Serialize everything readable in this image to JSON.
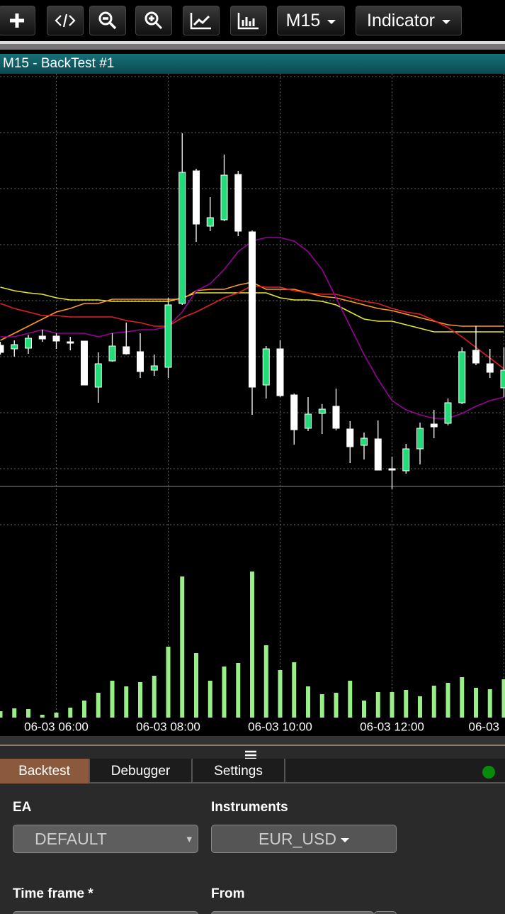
{
  "toolbar": {
    "timeframe": "M15",
    "indicator": "Indicator"
  },
  "panel_title": "M15 - BackTest #1",
  "chart_data": {
    "type": "candlestick",
    "categories": [
      null,
      null,
      null,
      null,
      "06-03 06:00",
      null,
      null,
      null,
      null,
      null,
      null,
      null,
      "06-03 08:00",
      null,
      null,
      null,
      null,
      null,
      null,
      null,
      "06-03 10:00",
      null,
      null,
      null,
      null,
      null,
      null,
      null,
      "06-03 12:00",
      null,
      null,
      null,
      null,
      null,
      null,
      null,
      "06-03"
    ],
    "open": [
      199,
      194,
      195,
      212,
      212,
      204,
      205,
      140,
      177,
      197,
      190,
      164,
      168,
      258,
      445,
      367,
      376,
      440,
      359,
      143,
      194,
      129,
      82,
      103,
      113,
      81,
      58,
      67,
      25,
      22,
      53,
      88,
      89,
      118,
      192,
      173,
      139
    ],
    "high": [
      204,
      206,
      214,
      221,
      216,
      211,
      205,
      189,
      216,
      231,
      216,
      186,
      266,
      498,
      448,
      408,
      468,
      445,
      361,
      198,
      206,
      131,
      126,
      116,
      138,
      92,
      76,
      93,
      42,
      60,
      90,
      108,
      124,
      196,
      226,
      194,
      196
    ],
    "low": [
      186,
      183,
      187,
      204,
      194,
      192,
      143,
      118,
      176,
      186,
      153,
      156,
      153,
      256,
      345,
      360,
      374,
      353,
      101,
      124,
      126,
      59,
      78,
      74,
      79,
      33,
      38,
      23,
      -4,
      18,
      31,
      68,
      86,
      116,
      171,
      153,
      126
    ],
    "close": [
      189,
      200,
      209,
      208,
      205,
      202,
      143,
      173,
      198,
      187,
      162,
      170,
      256,
      443,
      370,
      379,
      439,
      360,
      140,
      194,
      128,
      80,
      102,
      109,
      82,
      56,
      68,
      23,
      23,
      53,
      82,
      84,
      118,
      190,
      174,
      161,
      164
    ],
    "up_color": "#22dd77",
    "down_color": "#ffffff",
    "volume": [
      9,
      13,
      12,
      4,
      7,
      14,
      24,
      35,
      52,
      44,
      50,
      59,
      100,
      199,
      91,
      52,
      72,
      77,
      206,
      102,
      67,
      78,
      44,
      33,
      35,
      52,
      24,
      36,
      36,
      39,
      30,
      45,
      49,
      57,
      42,
      40,
      54
    ],
    "volume_color": "#99ee88",
    "volume_ylim": [
      0,
      220
    ],
    "lines": [
      {
        "color": "#e6e633",
        "values": [
          281,
          276,
          273,
          271,
          266,
          263,
          263,
          263,
          261,
          261,
          261,
          261,
          261,
          266,
          273,
          273,
          273,
          273,
          273,
          273,
          266,
          263,
          263,
          261,
          256,
          246,
          236,
          233,
          233,
          228,
          223,
          218,
          218,
          218,
          218,
          218,
          218
        ]
      },
      {
        "color": "#ff9922",
        "values": [
          206,
          216,
          226,
          236,
          246,
          251,
          258,
          258,
          264,
          264,
          264,
          264,
          264,
          264,
          276,
          278,
          278,
          284,
          288,
          278,
          278,
          278,
          273,
          268,
          266,
          261,
          256,
          251,
          248,
          243,
          238,
          233,
          228,
          226,
          226,
          226,
          226
        ]
      },
      {
        "color": "#e02020",
        "values": [
          258,
          251,
          246,
          241,
          241,
          239,
          239,
          239,
          239,
          234,
          231,
          226,
          226,
          238,
          246,
          256,
          266,
          273,
          283,
          281,
          281,
          276,
          273,
          271,
          271,
          266,
          261,
          258,
          251,
          246,
          243,
          234,
          224,
          211,
          196,
          181,
          166
        ]
      },
      {
        "color": "#990099",
        "values": [
          211,
          211,
          216,
          221,
          216,
          216,
          216,
          211,
          216,
          218,
          221,
          221,
          226,
          246,
          276,
          286,
          306,
          331,
          346,
          351,
          351,
          346,
          331,
          306,
          266,
          226,
          186,
          151,
          121,
          108,
          101,
          96,
          96,
          103,
          113,
          121,
          126
        ]
      }
    ],
    "ylim": [
      -10,
      582
    ],
    "yticks": [
      25,
      104,
      183,
      262,
      341,
      420,
      499,
      578
    ],
    "grid": true
  },
  "tabs": [
    "Backtest",
    "Debugger",
    "Settings"
  ],
  "form": {
    "ea_label": "EA",
    "ea_value": "DEFAULT",
    "instruments_label": "Instruments",
    "instruments_value": "EUR_USD",
    "timeframe_label": "Time frame *",
    "from_label": "From"
  }
}
